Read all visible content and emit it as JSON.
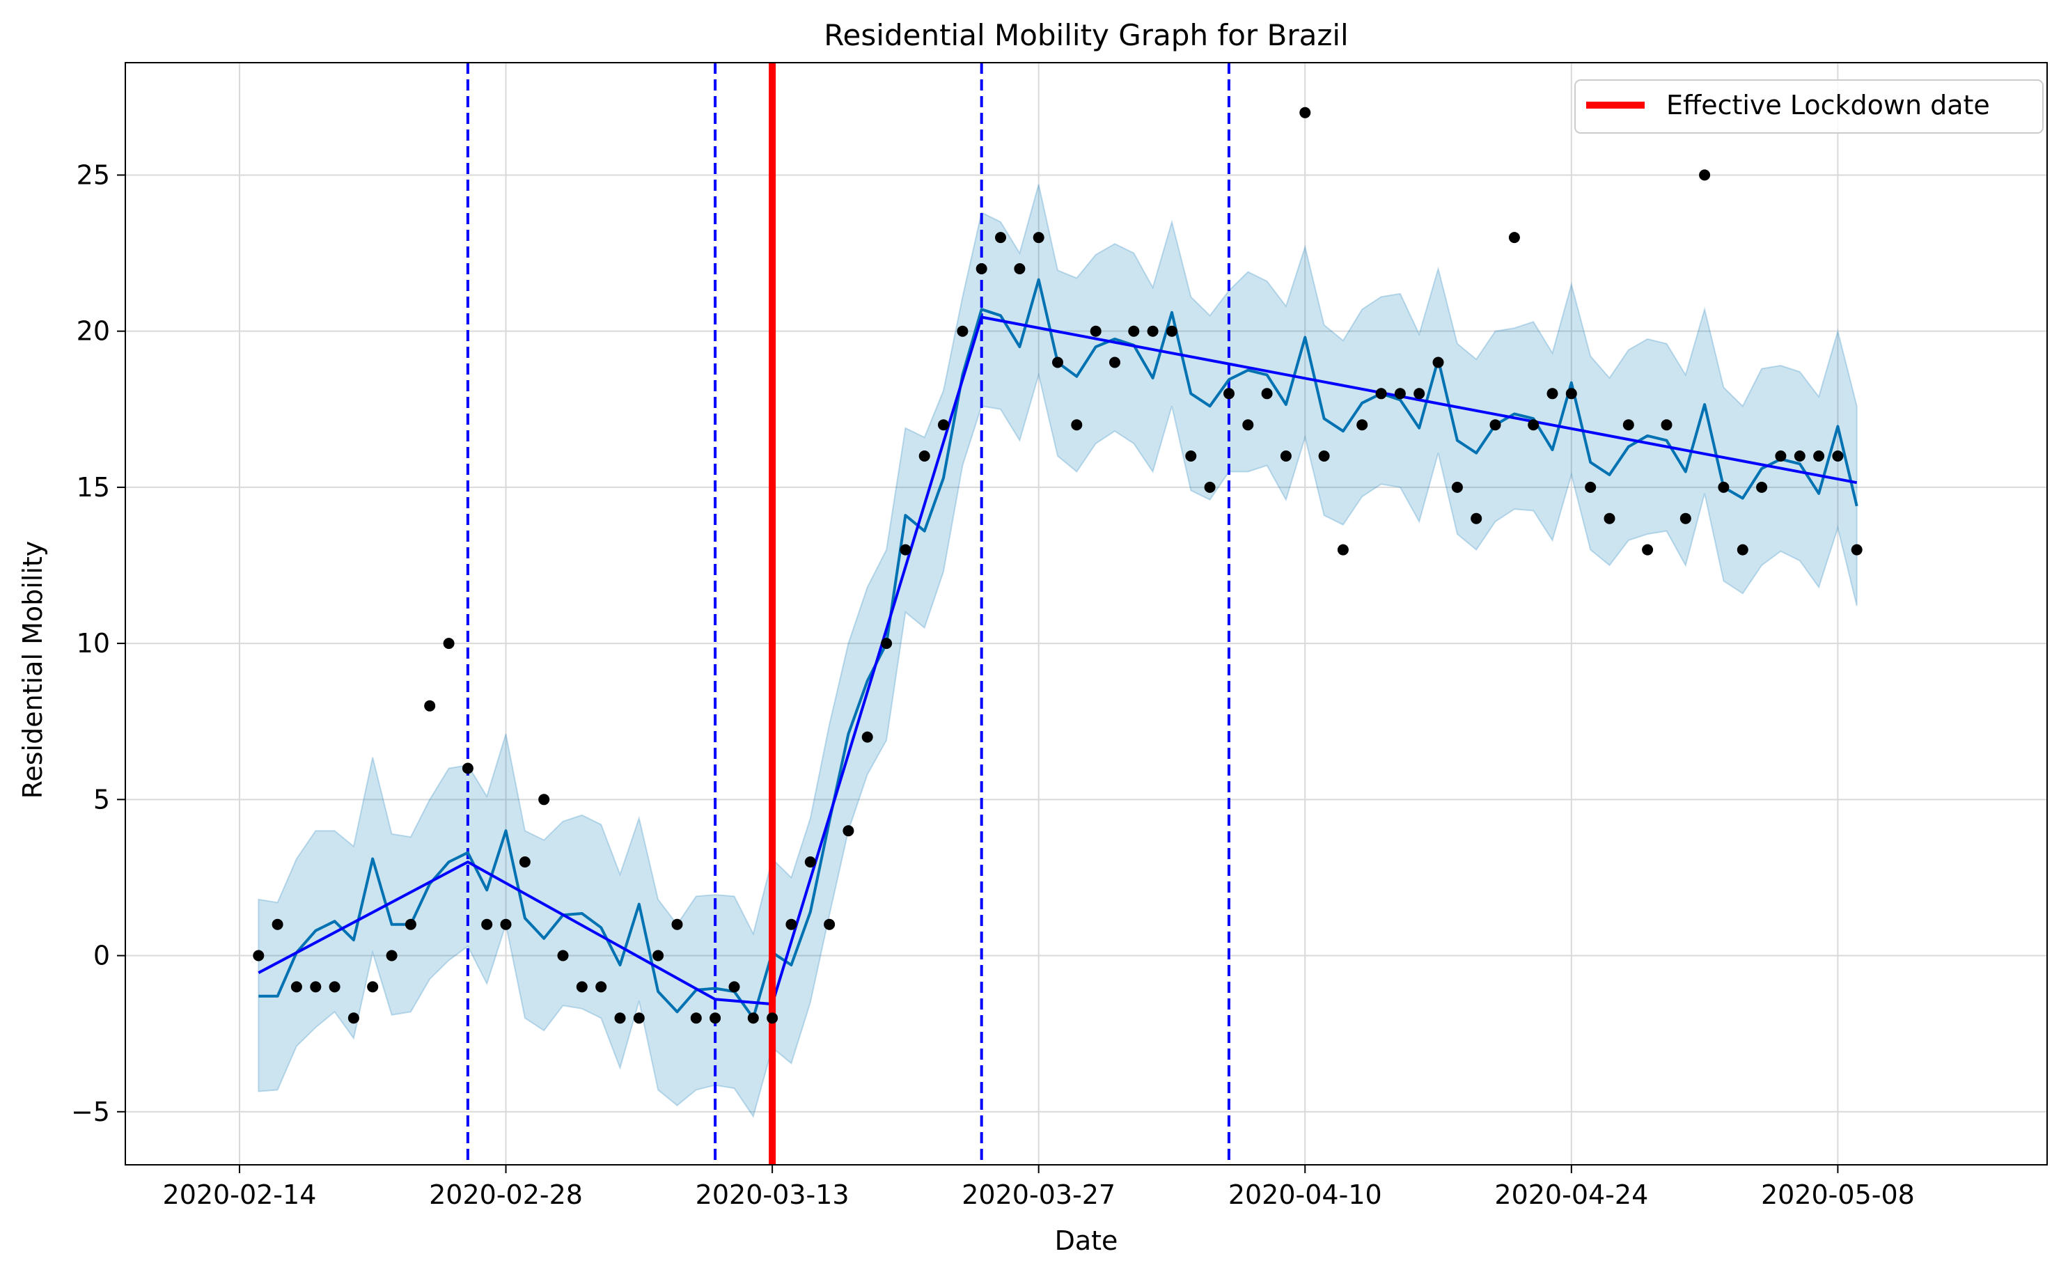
{
  "chart_data": {
    "type": "line",
    "title": "Residential Mobility Graph for Brazil",
    "xlabel": "Date",
    "ylabel": "Residential Mobility",
    "x_start": "2020-02-15",
    "xlim": [
      "2020-02-08",
      "2020-05-19"
    ],
    "ylim": [
      -6.7,
      28.6
    ],
    "grid": true,
    "legend_position": "top-right",
    "x_ticks": [
      "2020-02-14",
      "2020-02-28",
      "2020-03-13",
      "2020-03-27",
      "2020-04-10",
      "2020-04-24",
      "2020-05-08"
    ],
    "y_ticks": [
      -5,
      0,
      5,
      10,
      15,
      20,
      25
    ],
    "colors": {
      "observed": "#000000",
      "forecast": "#0072B2",
      "uncertainty": "#0072B2",
      "trend": "#0000FF",
      "changepoint": "#0000FF",
      "lockdown": "#FF0000"
    },
    "series": [
      {
        "name": "observed",
        "style": "points",
        "values": [
          0,
          1,
          -1,
          -1,
          -1,
          -2,
          -1,
          0,
          1,
          8,
          10,
          6,
          1,
          1,
          3,
          5,
          0,
          -1,
          -1,
          -2,
          -2,
          0,
          1,
          -2,
          -2,
          -1,
          -2,
          -2,
          1,
          3,
          1,
          4,
          7,
          10,
          13,
          16,
          17,
          20,
          22,
          23,
          22,
          23,
          19,
          17,
          20,
          19,
          20,
          20,
          20,
          16,
          15,
          18,
          17,
          18,
          16,
          27,
          16,
          13,
          17,
          18,
          18,
          18,
          19,
          15,
          14,
          17,
          23,
          17,
          18,
          18,
          15,
          14,
          17,
          13,
          17,
          14,
          25,
          15,
          13,
          15,
          16,
          16,
          16,
          16,
          13
        ]
      },
      {
        "name": "forecast",
        "style": "line",
        "values": [
          -1.3,
          -1.3,
          0.1,
          0.8,
          1.1,
          0.5,
          3.1,
          1,
          1,
          2.3,
          3,
          3.3,
          2.1,
          4,
          1.2,
          0.55,
          1.3,
          1.35,
          0.9,
          -0.3,
          1.65,
          -1.15,
          -1.8,
          -1.1,
          -1.05,
          -1.15,
          -2,
          0.1,
          -0.3,
          1.4,
          4.3,
          7.1,
          8.8,
          10,
          14.1,
          13.6,
          15.3,
          18.6,
          20.7,
          20.5,
          19.5,
          21.65,
          19,
          18.55,
          19.5,
          19.75,
          19.55,
          18.5,
          20.6,
          18,
          17.6,
          18.45,
          18.75,
          18.6,
          17.65,
          19.8,
          17.2,
          16.8,
          17.7,
          18,
          17.8,
          16.9,
          19.1,
          16.5,
          16.1,
          17,
          17.35,
          17.2,
          16.2,
          18.35,
          15.8,
          15.4,
          16.3,
          16.65,
          16.5,
          15.5,
          17.65,
          15,
          14.65,
          15.6,
          15.9,
          15.75,
          14.8,
          16.95,
          14.4
        ]
      },
      {
        "name": "forecast_upper",
        "style": "band",
        "values": [
          1.8,
          1.7,
          3.1,
          4,
          4,
          3.5,
          6.35,
          3.9,
          3.8,
          5,
          6,
          6.1,
          5.1,
          7.1,
          4,
          3.7,
          4.3,
          4.5,
          4.2,
          2.6,
          4.4,
          1.8,
          1,
          1.9,
          1.95,
          1.9,
          0.7,
          3.1,
          2.5,
          4.4,
          7.4,
          10,
          11.8,
          13,
          16.9,
          16.6,
          18.1,
          21.1,
          23.8,
          23.5,
          22.5,
          24.7,
          21.95,
          21.7,
          22.45,
          22.8,
          22.5,
          21.4,
          23.5,
          21.1,
          20.5,
          21.3,
          21.9,
          21.6,
          20.8,
          22.7,
          20.2,
          19.7,
          20.7,
          21.1,
          21.2,
          19.9,
          22,
          19.6,
          19.1,
          20,
          20.1,
          20.3,
          19.3,
          21.5,
          19.2,
          18.5,
          19.4,
          19.75,
          19.6,
          18.6,
          20.7,
          18.2,
          17.6,
          18.8,
          18.9,
          18.7,
          17.9,
          20,
          17.6
        ]
      },
      {
        "name": "forecast_lower",
        "style": "band",
        "values": [
          -4.35,
          -4.3,
          -2.9,
          -2.3,
          -1.8,
          -2.65,
          0.1,
          -1.9,
          -1.8,
          -0.75,
          -0.15,
          0.3,
          -0.9,
          1,
          -2,
          -2.4,
          -1.6,
          -1.7,
          -2,
          -3.6,
          -1.45,
          -4.3,
          -4.8,
          -4.3,
          -4.15,
          -4.25,
          -5.15,
          -2.95,
          -3.45,
          -1.5,
          1.3,
          4,
          5.8,
          6.9,
          11,
          10.5,
          12.3,
          15.7,
          17.6,
          17.5,
          16.5,
          18.6,
          16,
          15.5,
          16.4,
          16.8,
          16.4,
          15.5,
          17.6,
          14.9,
          14.6,
          15.5,
          15.5,
          15.7,
          14.6,
          16.6,
          14.1,
          13.8,
          14.7,
          15.1,
          15,
          13.9,
          16.1,
          13.5,
          13,
          13.9,
          14.3,
          14.25,
          13.3,
          15.4,
          13,
          12.5,
          13.3,
          13.5,
          13.6,
          12.5,
          14.8,
          12,
          11.6,
          12.5,
          12.95,
          12.65,
          11.8,
          13.7,
          11.2
        ]
      },
      {
        "name": "trend",
        "style": "line",
        "points": [
          {
            "date": "2020-02-15",
            "value": -0.55
          },
          {
            "date": "2020-02-26",
            "value": 3.0
          },
          {
            "date": "2020-03-10",
            "value": -1.4
          },
          {
            "date": "2020-03-13",
            "value": -1.55
          },
          {
            "date": "2020-03-24",
            "value": 20.45
          },
          {
            "date": "2020-05-09",
            "value": 15.15
          }
        ]
      }
    ],
    "changepoints": [
      "2020-02-26",
      "2020-03-10",
      "2020-03-24",
      "2020-04-06"
    ],
    "lockdown": {
      "date": "2020-03-13",
      "label": "Effective Lockdown date"
    }
  }
}
